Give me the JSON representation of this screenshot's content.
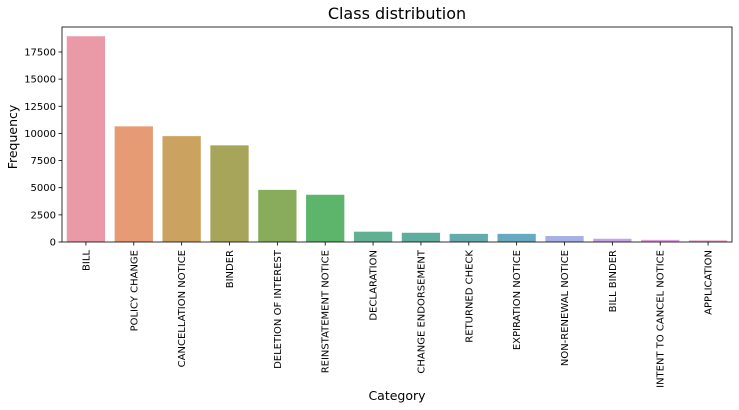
{
  "chart_data": {
    "type": "bar",
    "title": "Class distribution",
    "xlabel": "Category",
    "ylabel": "Frequency",
    "ylim": [
      0,
      19800
    ],
    "yticks": [
      0,
      2500,
      5000,
      7500,
      10000,
      12500,
      15000,
      17500
    ],
    "grid": false,
    "categories": [
      "BILL",
      "POLICY CHANGE",
      "CANCELLATION NOTICE",
      "BINDER",
      "DELETION OF INTEREST",
      "REINSTATEMENT NOTICE",
      "DECLARATION",
      "CHANGE ENDORSEMENT",
      "RETURNED CHECK",
      "EXPIRATION NOTICE",
      "NON-RENEWAL NOTICE",
      "BILL BINDER",
      "INTENT TO CANCEL NOTICE",
      "APPLICATION"
    ],
    "values": [
      18950,
      10650,
      9750,
      8900,
      4800,
      4350,
      950,
      850,
      750,
      750,
      550,
      300,
      200,
      150
    ],
    "colors": [
      "#ea9aa7",
      "#e69b74",
      "#cba25f",
      "#a7a55a",
      "#88ac5b",
      "#5db56c",
      "#62b093",
      "#5fad9f",
      "#63abac",
      "#67a9bf",
      "#a7b0e5",
      "#c6a3e6",
      "#e69ae0",
      "#eb9ac4"
    ]
  }
}
